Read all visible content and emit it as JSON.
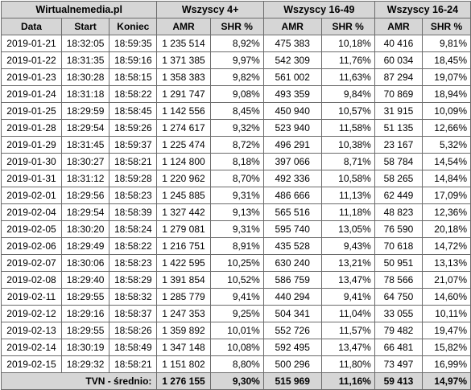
{
  "header": {
    "site": "Wirtualnemedia.pl",
    "groups": [
      "Wszyscy 4+",
      "Wszyscy 16-49",
      "Wszyscy 16-24"
    ]
  },
  "columns": {
    "date": "Data",
    "start": "Start",
    "end": "Koniec",
    "amr": "AMR",
    "shr": "SHR %"
  },
  "rows": [
    {
      "date": "2019-01-21",
      "start": "18:32:05",
      "end": "18:59:35",
      "amr4": "1 235 514",
      "shr4": "8,92%",
      "amr1649": "475 383",
      "shr1649": "10,18%",
      "amr1624": "40 416",
      "shr1624": "9,81%"
    },
    {
      "date": "2019-01-22",
      "start": "18:31:35",
      "end": "18:59:16",
      "amr4": "1 371 385",
      "shr4": "9,97%",
      "amr1649": "542 309",
      "shr1649": "11,76%",
      "amr1624": "60 034",
      "shr1624": "18,45%"
    },
    {
      "date": "2019-01-23",
      "start": "18:30:28",
      "end": "18:58:15",
      "amr4": "1 358 383",
      "shr4": "9,82%",
      "amr1649": "561 002",
      "shr1649": "11,63%",
      "amr1624": "87 294",
      "shr1624": "19,07%"
    },
    {
      "date": "2019-01-24",
      "start": "18:31:18",
      "end": "18:58:22",
      "amr4": "1 291 747",
      "shr4": "9,08%",
      "amr1649": "493 359",
      "shr1649": "9,84%",
      "amr1624": "70 869",
      "shr1624": "18,94%"
    },
    {
      "date": "2019-01-25",
      "start": "18:29:59",
      "end": "18:58:45",
      "amr4": "1 142 556",
      "shr4": "8,45%",
      "amr1649": "450 940",
      "shr1649": "10,57%",
      "amr1624": "31 915",
      "shr1624": "10,09%"
    },
    {
      "date": "2019-01-28",
      "start": "18:29:54",
      "end": "18:59:26",
      "amr4": "1 274 617",
      "shr4": "9,32%",
      "amr1649": "523 940",
      "shr1649": "11,58%",
      "amr1624": "51 135",
      "shr1624": "12,66%"
    },
    {
      "date": "2019-01-29",
      "start": "18:31:45",
      "end": "18:59:37",
      "amr4": "1 225 474",
      "shr4": "8,72%",
      "amr1649": "496 291",
      "shr1649": "10,38%",
      "amr1624": "23 167",
      "shr1624": "5,32%"
    },
    {
      "date": "2019-01-30",
      "start": "18:30:27",
      "end": "18:58:21",
      "amr4": "1 124 800",
      "shr4": "8,18%",
      "amr1649": "397 066",
      "shr1649": "8,71%",
      "amr1624": "58 784",
      "shr1624": "14,54%"
    },
    {
      "date": "2019-01-31",
      "start": "18:31:12",
      "end": "18:59:28",
      "amr4": "1 220 962",
      "shr4": "8,70%",
      "amr1649": "492 336",
      "shr1649": "10,58%",
      "amr1624": "58 265",
      "shr1624": "14,84%"
    },
    {
      "date": "2019-02-01",
      "start": "18:29:56",
      "end": "18:58:23",
      "amr4": "1 245 885",
      "shr4": "9,31%",
      "amr1649": "486 666",
      "shr1649": "11,13%",
      "amr1624": "62 449",
      "shr1624": "17,09%"
    },
    {
      "date": "2019-02-04",
      "start": "18:29:54",
      "end": "18:58:39",
      "amr4": "1 327 442",
      "shr4": "9,13%",
      "amr1649": "565 516",
      "shr1649": "11,18%",
      "amr1624": "48 823",
      "shr1624": "12,36%"
    },
    {
      "date": "2019-02-05",
      "start": "18:30:20",
      "end": "18:58:24",
      "amr4": "1 279 081",
      "shr4": "9,31%",
      "amr1649": "595 740",
      "shr1649": "13,05%",
      "amr1624": "76 590",
      "shr1624": "20,18%"
    },
    {
      "date": "2019-02-06",
      "start": "18:29:49",
      "end": "18:58:22",
      "amr4": "1 216 751",
      "shr4": "8,91%",
      "amr1649": "435 528",
      "shr1649": "9,43%",
      "amr1624": "70 618",
      "shr1624": "14,72%"
    },
    {
      "date": "2019-02-07",
      "start": "18:30:06",
      "end": "18:58:23",
      "amr4": "1 422 595",
      "shr4": "10,25%",
      "amr1649": "630 240",
      "shr1649": "13,21%",
      "amr1624": "50 951",
      "shr1624": "13,13%"
    },
    {
      "date": "2019-02-08",
      "start": "18:29:40",
      "end": "18:58:29",
      "amr4": "1 391 854",
      "shr4": "10,52%",
      "amr1649": "586 759",
      "shr1649": "13,47%",
      "amr1624": "78 566",
      "shr1624": "21,07%"
    },
    {
      "date": "2019-02-11",
      "start": "18:29:55",
      "end": "18:58:32",
      "amr4": "1 285 779",
      "shr4": "9,41%",
      "amr1649": "440 294",
      "shr1649": "9,41%",
      "amr1624": "64 750",
      "shr1624": "14,60%"
    },
    {
      "date": "2019-02-12",
      "start": "18:29:16",
      "end": "18:58:37",
      "amr4": "1 247 353",
      "shr4": "9,25%",
      "amr1649": "504 341",
      "shr1649": "11,04%",
      "amr1624": "33 055",
      "shr1624": "10,11%"
    },
    {
      "date": "2019-02-13",
      "start": "18:29:55",
      "end": "18:58:26",
      "amr4": "1 359 892",
      "shr4": "10,01%",
      "amr1649": "552 726",
      "shr1649": "11,57%",
      "amr1624": "79 482",
      "shr1624": "19,47%"
    },
    {
      "date": "2019-02-14",
      "start": "18:30:19",
      "end": "18:58:49",
      "amr4": "1 347 148",
      "shr4": "10,08%",
      "amr1649": "592 495",
      "shr1649": "13,47%",
      "amr1624": "66 481",
      "shr1624": "15,82%"
    },
    {
      "date": "2019-02-15",
      "start": "18:29:32",
      "end": "18:58:21",
      "amr4": "1 151 802",
      "shr4": "8,80%",
      "amr1649": "500 296",
      "shr1649": "11,80%",
      "amr1624": "73 497",
      "shr1624": "16,99%"
    }
  ],
  "footer": {
    "label": "TVN - średnio:",
    "amr4": "1 276 155",
    "shr4": "9,30%",
    "amr1649": "515 969",
    "shr1649": "11,16%",
    "amr1624": "59 413",
    "shr1624": "14,97%"
  }
}
